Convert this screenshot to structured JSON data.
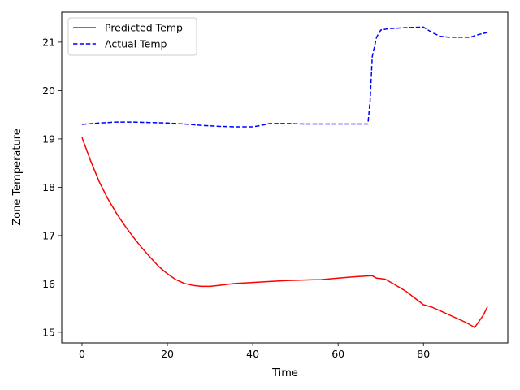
{
  "chart_data": {
    "type": "line",
    "xlabel": "Time",
    "ylabel": "Zone Temperature",
    "xlim": [
      -4.75,
      99.75
    ],
    "ylim": [
      14.78,
      21.62
    ],
    "xticks": [
      0,
      20,
      40,
      60,
      80
    ],
    "yticks": [
      15,
      16,
      17,
      18,
      19,
      20,
      21
    ],
    "grid": false,
    "legend_position": "top-left",
    "series": [
      {
        "name": "Predicted Temp",
        "color": "#ff0000",
        "linestyle": "solid",
        "x": [
          0,
          2,
          4,
          6,
          8,
          10,
          12,
          14,
          16,
          18,
          20,
          22,
          24,
          26,
          28,
          30,
          32,
          34,
          36,
          38,
          40,
          44,
          48,
          52,
          56,
          60,
          64,
          68,
          69,
          71,
          73,
          76,
          80,
          82,
          84,
          86,
          88,
          90,
          92,
          94,
          95
        ],
        "y": [
          19.03,
          18.55,
          18.12,
          17.77,
          17.47,
          17.21,
          16.97,
          16.75,
          16.55,
          16.36,
          16.21,
          16.09,
          16.01,
          15.97,
          15.95,
          15.95,
          15.97,
          15.99,
          16.01,
          16.02,
          16.03,
          16.05,
          16.07,
          16.08,
          16.09,
          16.12,
          16.15,
          16.17,
          16.12,
          16.1,
          16.0,
          15.84,
          15.57,
          15.52,
          15.44,
          15.36,
          15.28,
          15.2,
          15.1,
          15.35,
          15.53
        ]
      },
      {
        "name": "Actual Temp",
        "color": "#0000ff",
        "linestyle": "dashed",
        "x": [
          0,
          4,
          8,
          12,
          16,
          20,
          24,
          28,
          32,
          36,
          40,
          42,
          44,
          48,
          52,
          56,
          60,
          64,
          67,
          67.5,
          68,
          69,
          70,
          72,
          76,
          80,
          82,
          84,
          86,
          88,
          90,
          91,
          93,
          95
        ],
        "y": [
          19.3,
          19.33,
          19.35,
          19.35,
          19.34,
          19.33,
          19.31,
          19.28,
          19.26,
          19.25,
          19.25,
          19.28,
          19.32,
          19.32,
          19.31,
          19.31,
          19.31,
          19.31,
          19.31,
          19.8,
          20.7,
          21.1,
          21.25,
          21.28,
          21.3,
          21.31,
          21.2,
          21.12,
          21.1,
          21.1,
          21.1,
          21.1,
          21.16,
          21.2
        ]
      }
    ]
  }
}
